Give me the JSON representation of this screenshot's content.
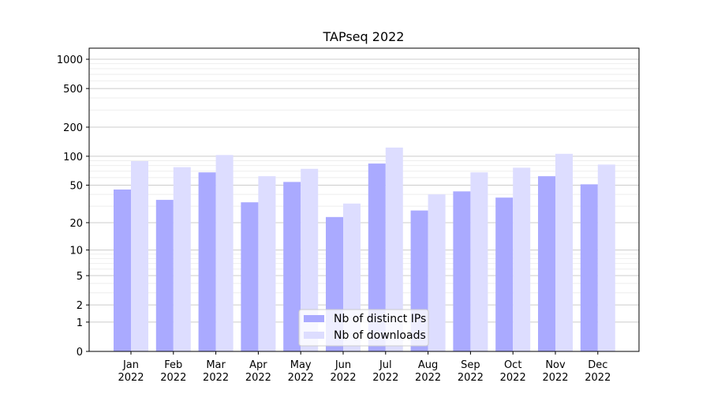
{
  "chart_data": {
    "type": "bar",
    "title": "TAPseq 2022",
    "xlabel": "",
    "ylabel": "",
    "yscale": "log(1+y)",
    "ylim": [
      0,
      1300
    ],
    "yticks": [
      0,
      1,
      2,
      5,
      10,
      20,
      50,
      100,
      200,
      500,
      1000
    ],
    "grid": true,
    "legend": "lower-center",
    "categories": [
      "Jan\n2022",
      "Feb\n2022",
      "Mar\n2022",
      "Apr\n2022",
      "May\n2022",
      "Jun\n2022",
      "Jul\n2022",
      "Aug\n2022",
      "Sep\n2022",
      "Oct\n2022",
      "Nov\n2022",
      "Dec\n2022"
    ],
    "series": [
      {
        "name": "Nb of distinct IPs",
        "color": "#aaaaff",
        "values": [
          45,
          35,
          68,
          33,
          54,
          23,
          84,
          27,
          43,
          37,
          62,
          51
        ]
      },
      {
        "name": "Nb of downloads",
        "color": "#ddddff",
        "values": [
          89,
          77,
          103,
          62,
          74,
          32,
          123,
          40,
          68,
          76,
          106,
          82
        ]
      }
    ]
  }
}
